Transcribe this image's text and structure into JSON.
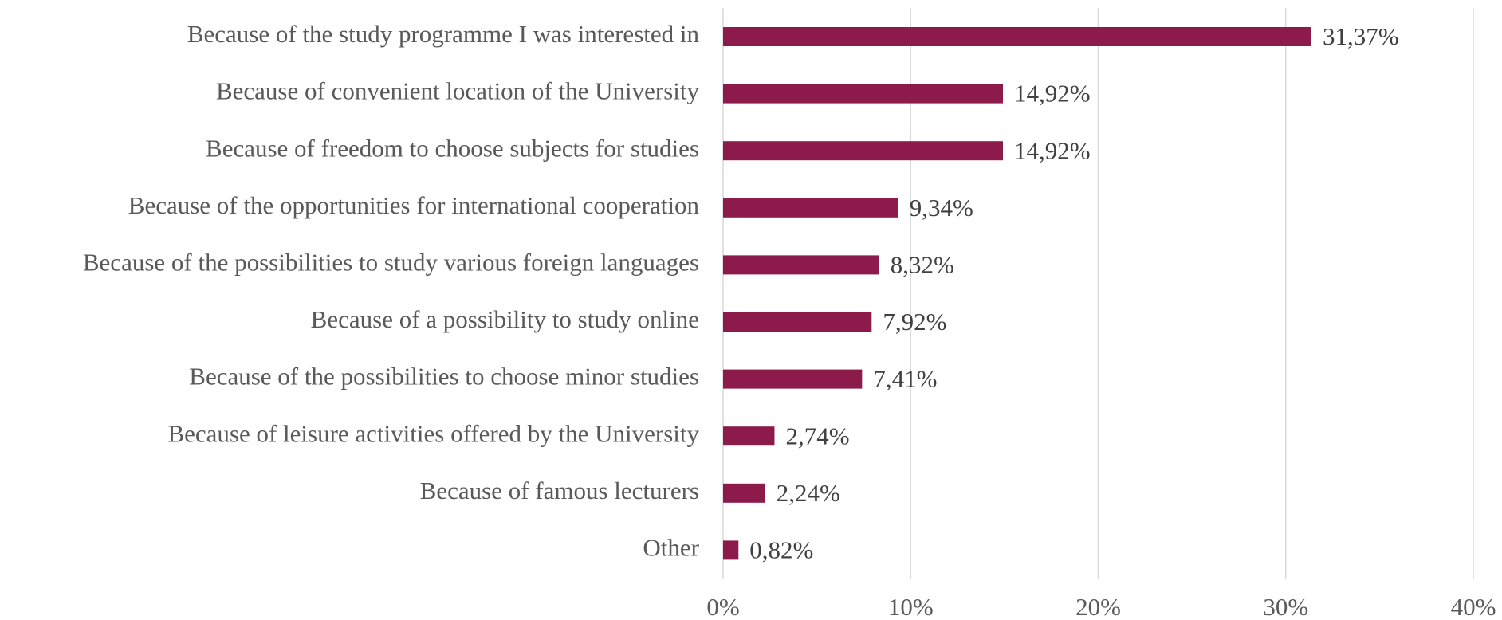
{
  "chart_data": {
    "type": "barh",
    "categories": [
      "Because of the study programme I was interested in",
      "Because of convenient location of the University",
      "Because of freedom to choose subjects for studies",
      "Because of the opportunities for international cooperation",
      "Because of the possibilities to study various foreign languages",
      "Because of a possibility to study online",
      "Because of the possibilities to choose minor studies",
      "Because of leisure activities offered by the University",
      "Because of famous lecturers",
      "Other"
    ],
    "values": [
      31.37,
      14.92,
      14.92,
      9.34,
      8.32,
      7.92,
      7.41,
      2.74,
      2.24,
      0.82
    ],
    "value_labels": [
      "31,37%",
      "14,92%",
      "14,92%",
      "9,34%",
      "8,32%",
      "7,92%",
      "7,41%",
      "2,74%",
      "2,24%",
      "0,82%"
    ],
    "color": "#8c1a4b",
    "xlim": [
      0,
      40
    ],
    "xticks": [
      {
        "value": 0,
        "label": "0%"
      },
      {
        "value": 10,
        "label": "10%"
      },
      {
        "value": 20,
        "label": "20%"
      },
      {
        "value": 30,
        "label": "30%"
      },
      {
        "value": 40,
        "label": "40%"
      }
    ],
    "grid": true
  }
}
